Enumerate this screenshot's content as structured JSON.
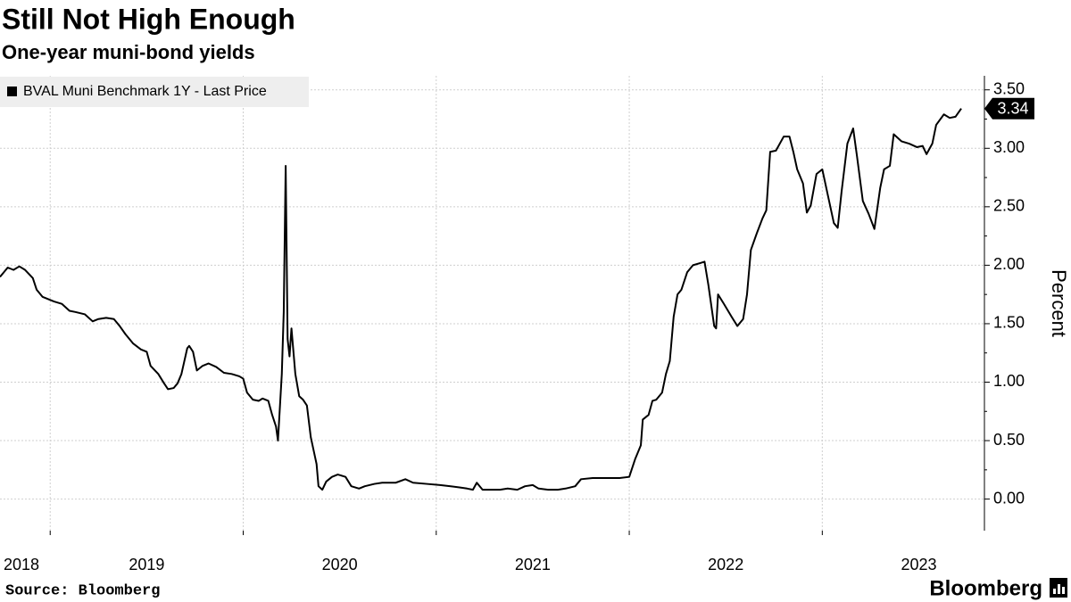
{
  "chart_data": {
    "type": "line",
    "title": "Still Not High Enough",
    "subtitle": "One-year muni-bond yields",
    "y_axis_label": "Percent",
    "source": "Source: Bloomberg",
    "logo": "Bloomberg",
    "legend": "top-left",
    "grid": true,
    "xlim": [
      2018.74,
      2023.84
    ],
    "xticks": [
      2019,
      2020,
      2021,
      2022,
      2023
    ],
    "xtick_labels": [
      {
        "value": 2018.5,
        "label": "2018"
      },
      {
        "value": 2019.5,
        "label": "2019"
      },
      {
        "value": 2020.5,
        "label": "2020"
      },
      {
        "value": 2021.5,
        "label": "2021"
      },
      {
        "value": 2022.5,
        "label": "2022"
      },
      {
        "value": 2023.5,
        "label": "2023"
      }
    ],
    "ylim": [
      -0.27,
      3.62
    ],
    "yticks": [
      {
        "value": 0,
        "label": "0.00"
      },
      {
        "value": 0.5,
        "label": "0.50"
      },
      {
        "value": 1,
        "label": "1.00"
      },
      {
        "value": 1.5,
        "label": "1.50"
      },
      {
        "value": 2,
        "label": "2.00"
      },
      {
        "value": 2.5,
        "label": "2.50"
      },
      {
        "value": 3,
        "label": "3.00"
      },
      {
        "value": 3.5,
        "label": "3.50"
      }
    ],
    "x": [
      2018.74,
      2018.76,
      2018.78,
      2018.81,
      2018.84,
      2018.87,
      2018.91,
      2018.93,
      2018.96,
      2018.99,
      2019.02,
      2019.06,
      2019.1,
      2019.13,
      2019.18,
      2019.22,
      2019.25,
      2019.29,
      2019.33,
      2019.36,
      2019.39,
      2019.43,
      2019.47,
      2019.5,
      2019.52,
      2019.56,
      2019.59,
      2019.61,
      2019.64,
      2019.66,
      2019.68,
      2019.71,
      2019.72,
      2019.74,
      2019.76,
      2019.79,
      2019.82,
      2019.86,
      2019.9,
      2019.94,
      2019.98,
      2020.0,
      2020.02,
      2020.05,
      2020.08,
      2020.1,
      2020.13,
      2020.15,
      2020.17,
      2020.18,
      2020.2,
      2020.21,
      2020.22,
      2020.23,
      2020.24,
      2020.25,
      2020.27,
      2020.29,
      2020.31,
      2020.33,
      2020.35,
      2020.38,
      2020.39,
      2020.41,
      2020.43,
      2020.46,
      2020.49,
      2020.53,
      2020.56,
      2020.6,
      2020.63,
      2020.68,
      2020.72,
      2020.79,
      2020.84,
      2020.88,
      2020.95,
      2021.02,
      2021.07,
      2021.12,
      2021.16,
      2021.19,
      2021.21,
      2021.24,
      2021.28,
      2021.33,
      2021.37,
      2021.42,
      2021.46,
      2021.5,
      2021.53,
      2021.58,
      2021.63,
      2021.67,
      2021.72,
      2021.75,
      2021.81,
      2021.88,
      2021.95,
      2022.0,
      2022.03,
      2022.06,
      2022.07,
      2022.1,
      2022.12,
      2022.14,
      2022.17,
      2022.19,
      2022.21,
      2022.23,
      2022.25,
      2022.27,
      2022.3,
      2022.33,
      2022.37,
      2022.39,
      2022.41,
      2022.44,
      2022.45,
      2022.46,
      2022.49,
      2022.53,
      2022.56,
      2022.59,
      2022.61,
      2022.63,
      2022.66,
      2022.69,
      2022.71,
      2022.73,
      2022.76,
      2022.8,
      2022.83,
      2022.85,
      2022.87,
      2022.9,
      2022.92,
      2022.94,
      2022.97,
      2023.0,
      2023.03,
      2023.06,
      2023.08,
      2023.1,
      2023.13,
      2023.16,
      2023.18,
      2023.21,
      2023.24,
      2023.27,
      2023.3,
      2023.32,
      2023.35,
      2023.37,
      2023.41,
      2023.45,
      2023.49,
      2023.52,
      2023.54,
      2023.57,
      2023.59,
      2023.63,
      2023.66,
      2023.69,
      2023.72
    ],
    "series": [
      {
        "name": "BVAL Muni Benchmark 1Y - Last Price",
        "color": "#000000",
        "values": [
          1.9,
          1.94,
          1.98,
          1.96,
          1.99,
          1.96,
          1.89,
          1.79,
          1.73,
          1.71,
          1.69,
          1.67,
          1.61,
          1.6,
          1.58,
          1.52,
          1.54,
          1.55,
          1.54,
          1.48,
          1.41,
          1.33,
          1.28,
          1.26,
          1.14,
          1.07,
          0.99,
          0.94,
          0.95,
          0.99,
          1.07,
          1.29,
          1.31,
          1.26,
          1.1,
          1.14,
          1.16,
          1.13,
          1.08,
          1.07,
          1.05,
          1.03,
          0.91,
          0.85,
          0.84,
          0.86,
          0.84,
          0.72,
          0.62,
          0.5,
          1.07,
          1.6,
          2.85,
          1.37,
          1.22,
          1.46,
          1.07,
          0.88,
          0.85,
          0.8,
          0.53,
          0.3,
          0.11,
          0.08,
          0.15,
          0.19,
          0.21,
          0.19,
          0.11,
          0.09,
          0.11,
          0.13,
          0.14,
          0.14,
          0.17,
          0.14,
          0.13,
          0.12,
          0.11,
          0.1,
          0.09,
          0.08,
          0.14,
          0.08,
          0.08,
          0.08,
          0.09,
          0.08,
          0.11,
          0.12,
          0.09,
          0.08,
          0.08,
          0.09,
          0.11,
          0.17,
          0.18,
          0.18,
          0.18,
          0.19,
          0.34,
          0.46,
          0.68,
          0.72,
          0.84,
          0.85,
          0.91,
          1.07,
          1.18,
          1.56,
          1.75,
          1.79,
          1.94,
          2.0,
          2.02,
          2.03,
          1.83,
          1.48,
          1.46,
          1.75,
          1.67,
          1.56,
          1.48,
          1.54,
          1.75,
          2.13,
          2.27,
          2.4,
          2.47,
          2.97,
          2.98,
          3.1,
          3.1,
          2.97,
          2.82,
          2.7,
          2.45,
          2.51,
          2.78,
          2.82,
          2.59,
          2.36,
          2.32,
          2.63,
          3.04,
          3.17,
          2.93,
          2.55,
          2.44,
          2.31,
          2.66,
          2.82,
          2.85,
          3.12,
          3.06,
          3.04,
          3.01,
          3.02,
          2.95,
          3.04,
          3.2,
          3.29,
          3.26,
          3.27,
          3.34
        ]
      }
    ]
  }
}
